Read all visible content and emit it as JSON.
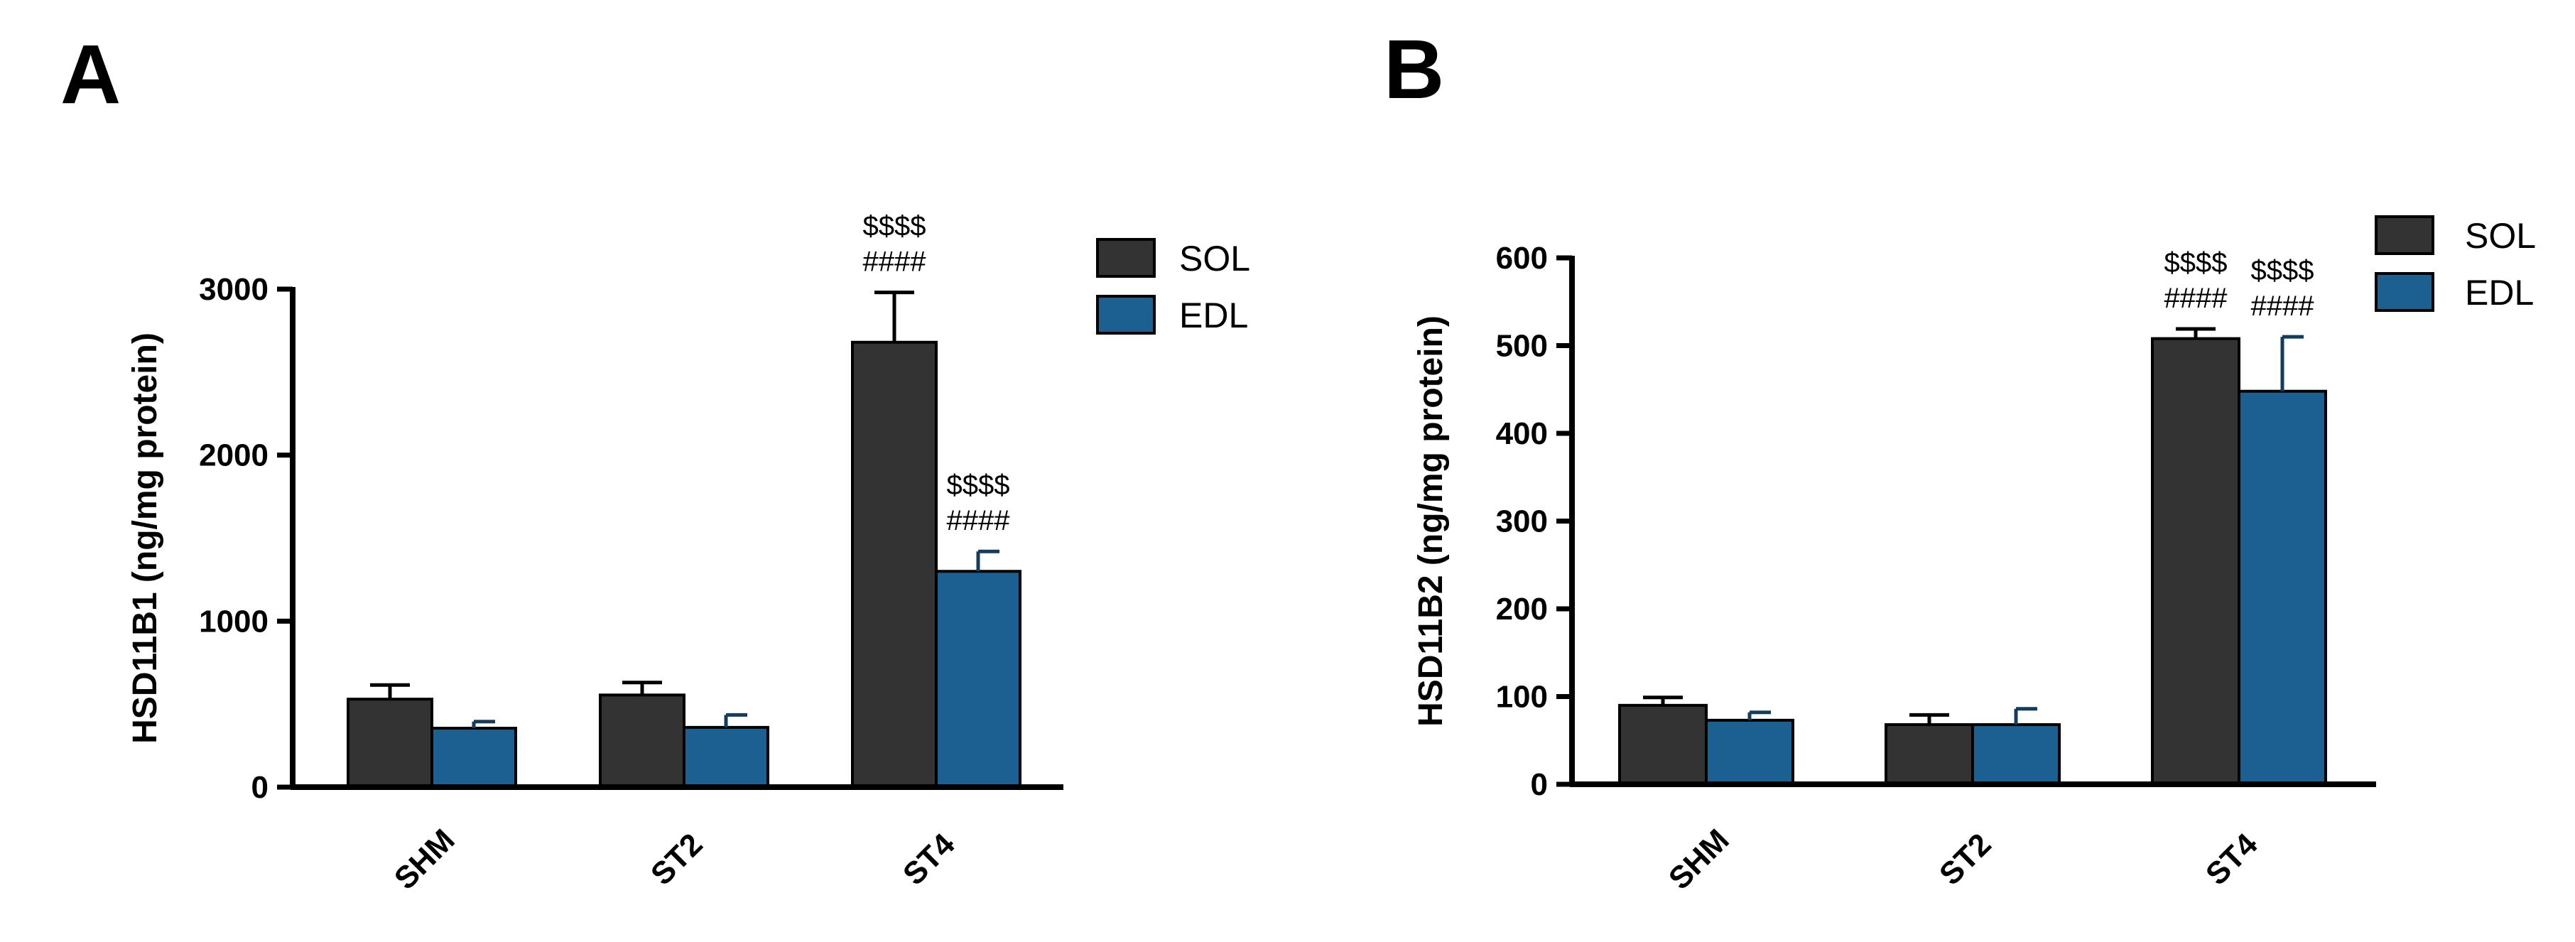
{
  "colors": {
    "SOL": "#333333",
    "EDL": "#1b6090"
  },
  "chart_data": [
    {
      "type": "bar",
      "panel": "A",
      "title": "",
      "xlabel": "",
      "ylabel": "HSD11B1 (ng/mg protein)",
      "ylim": [
        0,
        3000
      ],
      "yticks": [
        0,
        1000,
        2000,
        3000
      ],
      "ytick_labels": [
        "0",
        "1000",
        "2000",
        "3000"
      ],
      "categories": [
        "SHM",
        "ST2",
        "ST4"
      ],
      "series": [
        {
          "name": "SOL",
          "values": [
            530,
            555,
            2680
          ],
          "errors": [
            85,
            75,
            300
          ],
          "annotations": [
            "",
            "",
            "$$$$\n####"
          ]
        },
        {
          "name": "EDL",
          "values": [
            355,
            360,
            1300
          ],
          "errors": [
            40,
            75,
            120
          ],
          "annotations": [
            "",
            "",
            "$$$$\n####"
          ]
        }
      ],
      "legend": {
        "position": "top-right",
        "entries": [
          "SOL",
          "EDL"
        ]
      }
    },
    {
      "type": "bar",
      "panel": "B",
      "title": "",
      "xlabel": "",
      "ylabel": "HSD11B2 (ng/mg protein)",
      "ylim": [
        0,
        600
      ],
      "yticks": [
        0,
        100,
        200,
        300,
        400,
        500,
        600
      ],
      "ytick_labels": [
        "0",
        "100",
        "200",
        "300",
        "400",
        "500",
        "600"
      ],
      "categories": [
        "SHM",
        "ST2",
        "ST4"
      ],
      "series": [
        {
          "name": "SOL",
          "values": [
            90,
            68,
            508
          ],
          "errors": [
            9,
            11,
            11
          ],
          "annotations": [
            "",
            "",
            "$$$$\n####"
          ]
        },
        {
          "name": "EDL",
          "values": [
            73,
            68,
            448
          ],
          "errors": [
            9,
            18,
            62
          ],
          "annotations": [
            "",
            "",
            "$$$$\n####"
          ]
        }
      ],
      "legend": {
        "position": "top-right",
        "entries": [
          "SOL",
          "EDL"
        ]
      }
    }
  ]
}
